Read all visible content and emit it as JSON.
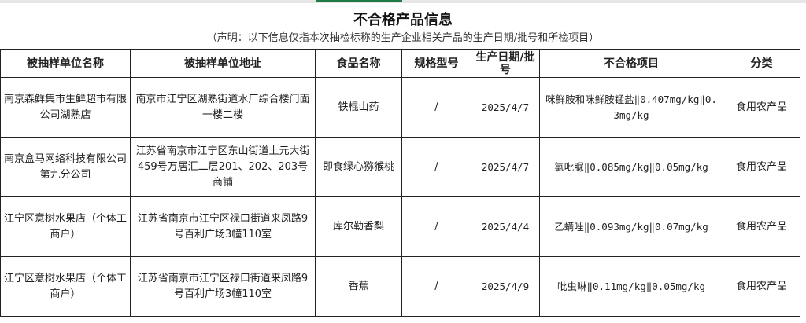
{
  "title": "不合格产品信息",
  "subtitle": "（声明：以下信息仅指本次抽检标称的生产企业相关产品的生产日期/批号和所检项目）",
  "accent_color": "#1e7b45",
  "headers": [
    "被抽样单位名称",
    "被抽样单位地址",
    "食品名称",
    "规格型号",
    "生产日期/批号",
    "不合格项目",
    "分类"
  ],
  "rows": [
    [
      "南京森鲜集市生鲜超市有限公司湖熟店",
      "南京市江宁区湖熟街道水厂综合楼门面一楼二楼",
      "铁棍山药",
      "/",
      "2025/4/7",
      "咪鲜胺和咪鲜胺锰盐‖0.407mg/kg‖0.3mg/kg",
      "食用农产品"
    ],
    [
      "南京盒马网络科技有限公司第九分公司",
      "江苏省南京市江宁区东山街道上元大街459号万居汇二层201、202、203号商铺",
      "即食绿心猕猴桃",
      "/",
      "2025/4/7",
      "氯吡脲‖0.085mg/kg‖0.05mg/kg",
      "食用农产品"
    ],
    [
      "江宁区意树水果店（个体工商户）",
      "江苏省南京市江宁区禄口街道来凤路9号百利广场3幢110室",
      "库尔勒香梨",
      "/",
      "2025/4/4",
      "乙螨唑‖0.093mg/kg‖0.07mg/kg",
      "食用农产品"
    ],
    [
      "江宁区意树水果店（个体工商户）",
      "江苏省南京市江宁区禄口街道来凤路9号百利广场3幢110室",
      "香蕉",
      "/",
      "2025/4/9",
      "吡虫啉‖0.11mg/kg‖0.05mg/kg",
      "食用农产品"
    ]
  ]
}
